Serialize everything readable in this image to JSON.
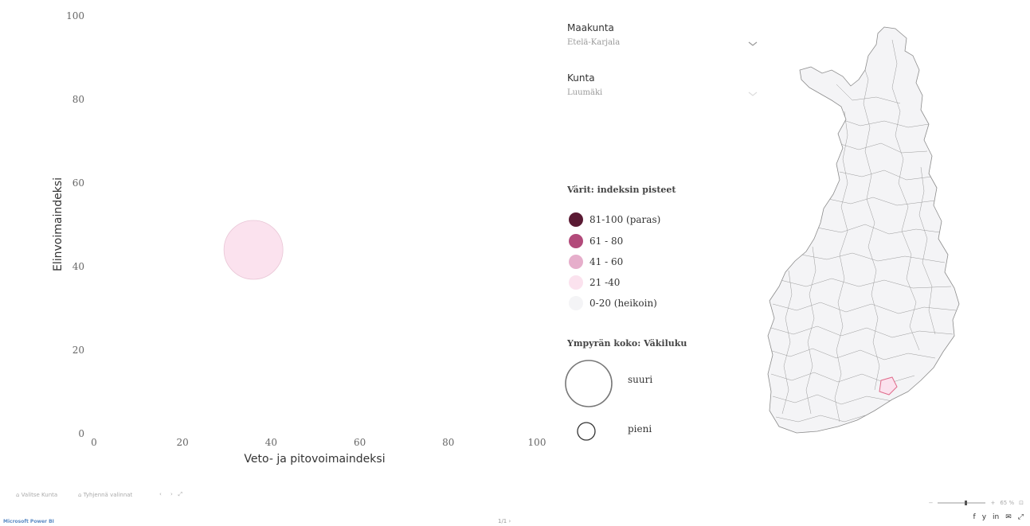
{
  "chart_data": {
    "type": "scatter",
    "xlabel": "Veto- ja pitovoimaindeksi",
    "ylabel": "Elinvoimaindeksi",
    "xlim": [
      0,
      100
    ],
    "ylim": [
      0,
      100
    ],
    "x_ticks": [
      "0",
      "20",
      "40",
      "60",
      "80",
      "100"
    ],
    "y_ticks": [
      "0",
      "20",
      "40",
      "60",
      "80",
      "100"
    ],
    "grid": false,
    "points": [
      {
        "x": 36,
        "y": 44,
        "color_class": "21-40",
        "color": "#fbe2ee",
        "size": "large"
      }
    ]
  },
  "slicers": {
    "maakunta": {
      "label": "Maakunta",
      "value": "Etelä-Karjala"
    },
    "kunta": {
      "label": "Kunta",
      "value": "Luumäki"
    }
  },
  "legend": {
    "title": "Värit: indeksin pisteet",
    "items": [
      {
        "label": "81-100 (paras)",
        "color": "#5a1a33"
      },
      {
        "label": "61 - 80",
        "color": "#b24a7a"
      },
      {
        "label": "41 - 60",
        "color": "#e6aecb"
      },
      {
        "label": "21 -40",
        "color": "#fbe2ee"
      },
      {
        "label": "0-20 (heikoin)",
        "color": "#f4f4f6"
      }
    ]
  },
  "size_legend": {
    "title": "Ympyrän koko: Väkiluku",
    "large_label": "suuri",
    "small_label": "pieni"
  },
  "bottom": {
    "left_links": [
      "Valitse Kunta",
      "Tyhjennä valinnat"
    ],
    "brand": "Microsoft Power BI",
    "page_indicator": "1/1  ›",
    "zoom": "65 %",
    "share": [
      "f",
      "y",
      "in",
      "✉",
      "⤢"
    ]
  },
  "colors": {
    "map_stroke": "#9a9a9a",
    "map_fill": "#f4f4f6",
    "highlight": "#e06a8a"
  }
}
